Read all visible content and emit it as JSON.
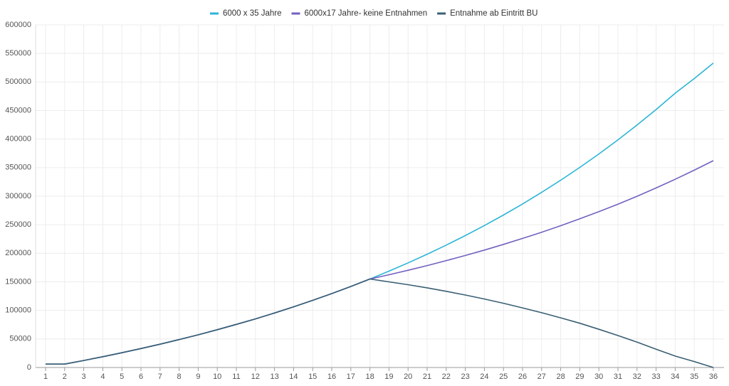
{
  "chart_data": {
    "type": "line",
    "categories": [
      1,
      2,
      3,
      4,
      5,
      6,
      7,
      8,
      9,
      10,
      11,
      12,
      13,
      14,
      15,
      16,
      17,
      18,
      19,
      20,
      21,
      22,
      23,
      24,
      25,
      26,
      27,
      28,
      29,
      30,
      31,
      32,
      33,
      34,
      35,
      36
    ],
    "series": [
      {
        "name": "6000 x 35 Jahre",
        "color": "#2bb5d6",
        "values": [
          6000,
          6000,
          12300,
          18900,
          25900,
          33200,
          40800,
          48900,
          57300,
          66200,
          75500,
          85200,
          95500,
          106300,
          117600,
          129500,
          141900,
          155000,
          168800,
          183200,
          198400,
          214300,
          231000,
          248600,
          267000,
          286400,
          306700,
          328000,
          350400,
          373900,
          398600,
          424600,
          451800,
          480400,
          506000,
          533000
        ]
      },
      {
        "name": "6000x17 Jahre- keine Entnahmen",
        "color": "#7360c0",
        "values": [
          6000,
          6000,
          12300,
          18900,
          25900,
          33200,
          40800,
          48900,
          57300,
          66200,
          75500,
          85200,
          95500,
          106300,
          117600,
          129500,
          141900,
          155000,
          162500,
          170300,
          178500,
          187200,
          196200,
          205700,
          215600,
          226000,
          236900,
          248400,
          260400,
          272900,
          286100,
          299900,
          314400,
          329600,
          345500,
          362200
        ]
      },
      {
        "name": "Entnahme ab Eintritt BU",
        "color": "#3a5f73",
        "values": [
          6000,
          6000,
          12300,
          18900,
          25900,
          33200,
          40800,
          48900,
          57300,
          66200,
          75500,
          85200,
          95500,
          106300,
          117600,
          129500,
          141900,
          155000,
          150000,
          145000,
          139500,
          133500,
          127000,
          120000,
          112500,
          104500,
          96000,
          87000,
          77500,
          67000,
          56000,
          44500,
          32000,
          20000,
          10500,
          0
        ]
      }
    ],
    "ylim": [
      0,
      600000
    ],
    "yticks": [
      0,
      50000,
      100000,
      150000,
      200000,
      250000,
      300000,
      350000,
      400000,
      450000,
      500000,
      550000,
      600000
    ],
    "grid": true
  }
}
